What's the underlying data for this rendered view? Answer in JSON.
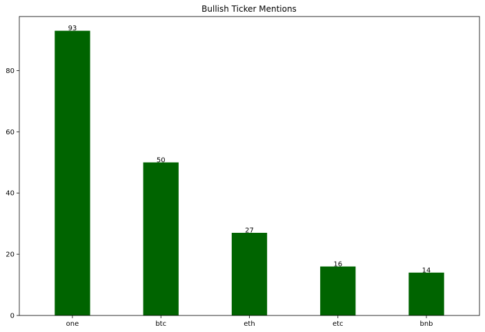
{
  "chart_data": {
    "type": "bar",
    "title": "Bullish Ticker Mentions",
    "xlabel": "",
    "ylabel": "",
    "categories": [
      "one",
      "btc",
      "eth",
      "etc",
      "bnb"
    ],
    "values": [
      93,
      50,
      27,
      16,
      14
    ],
    "ylim": [
      0,
      97.65
    ],
    "yticks": [
      0,
      20,
      40,
      60,
      80
    ],
    "bar_color": "#006400",
    "grid": false,
    "legend": "none"
  }
}
